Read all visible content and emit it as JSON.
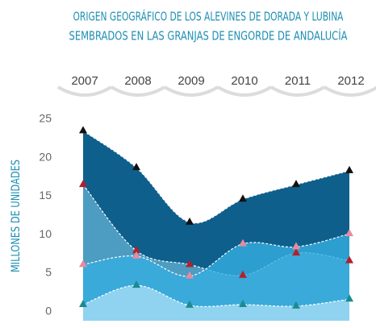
{
  "chart_data": {
    "type": "area",
    "title": [
      "ORIGEN GEOGRÁFICO DE LOS ALEVINES DE DORADA Y LUBINA",
      "SEMBRADOS EN LAS GRANJAS DE ENGORDE DE ANDALUCÍA"
    ],
    "y_label": "MILLONES DE UNIDADES",
    "categories": [
      "2007",
      "2008",
      "2009",
      "2010",
      "2011",
      "2012"
    ],
    "series": [
      {
        "color": "#111111",
        "fill": "#0e5f8c",
        "values": [
          23.5,
          18.7,
          11.6,
          14.6,
          16.5,
          18.3
        ]
      },
      {
        "color": "#b3202a",
        "fill": "#4d9cc2",
        "values": [
          16.5,
          7.9,
          6.1,
          4.7,
          7.6,
          6.6
        ]
      },
      {
        "color": "#e88aa0",
        "fill": "#35aee0",
        "values": [
          6.1,
          7.2,
          4.6,
          8.8,
          8.4,
          10.1
        ]
      },
      {
        "color": "#1d8a8f",
        "fill": "#8fd3f0",
        "values": [
          0.9,
          3.4,
          0.8,
          0.9,
          0.7,
          1.6
        ]
      }
    ],
    "ylim": [
      -1.2,
      25
    ],
    "yticks": [
      0,
      5,
      10,
      15,
      20,
      25
    ],
    "grid": false
  }
}
